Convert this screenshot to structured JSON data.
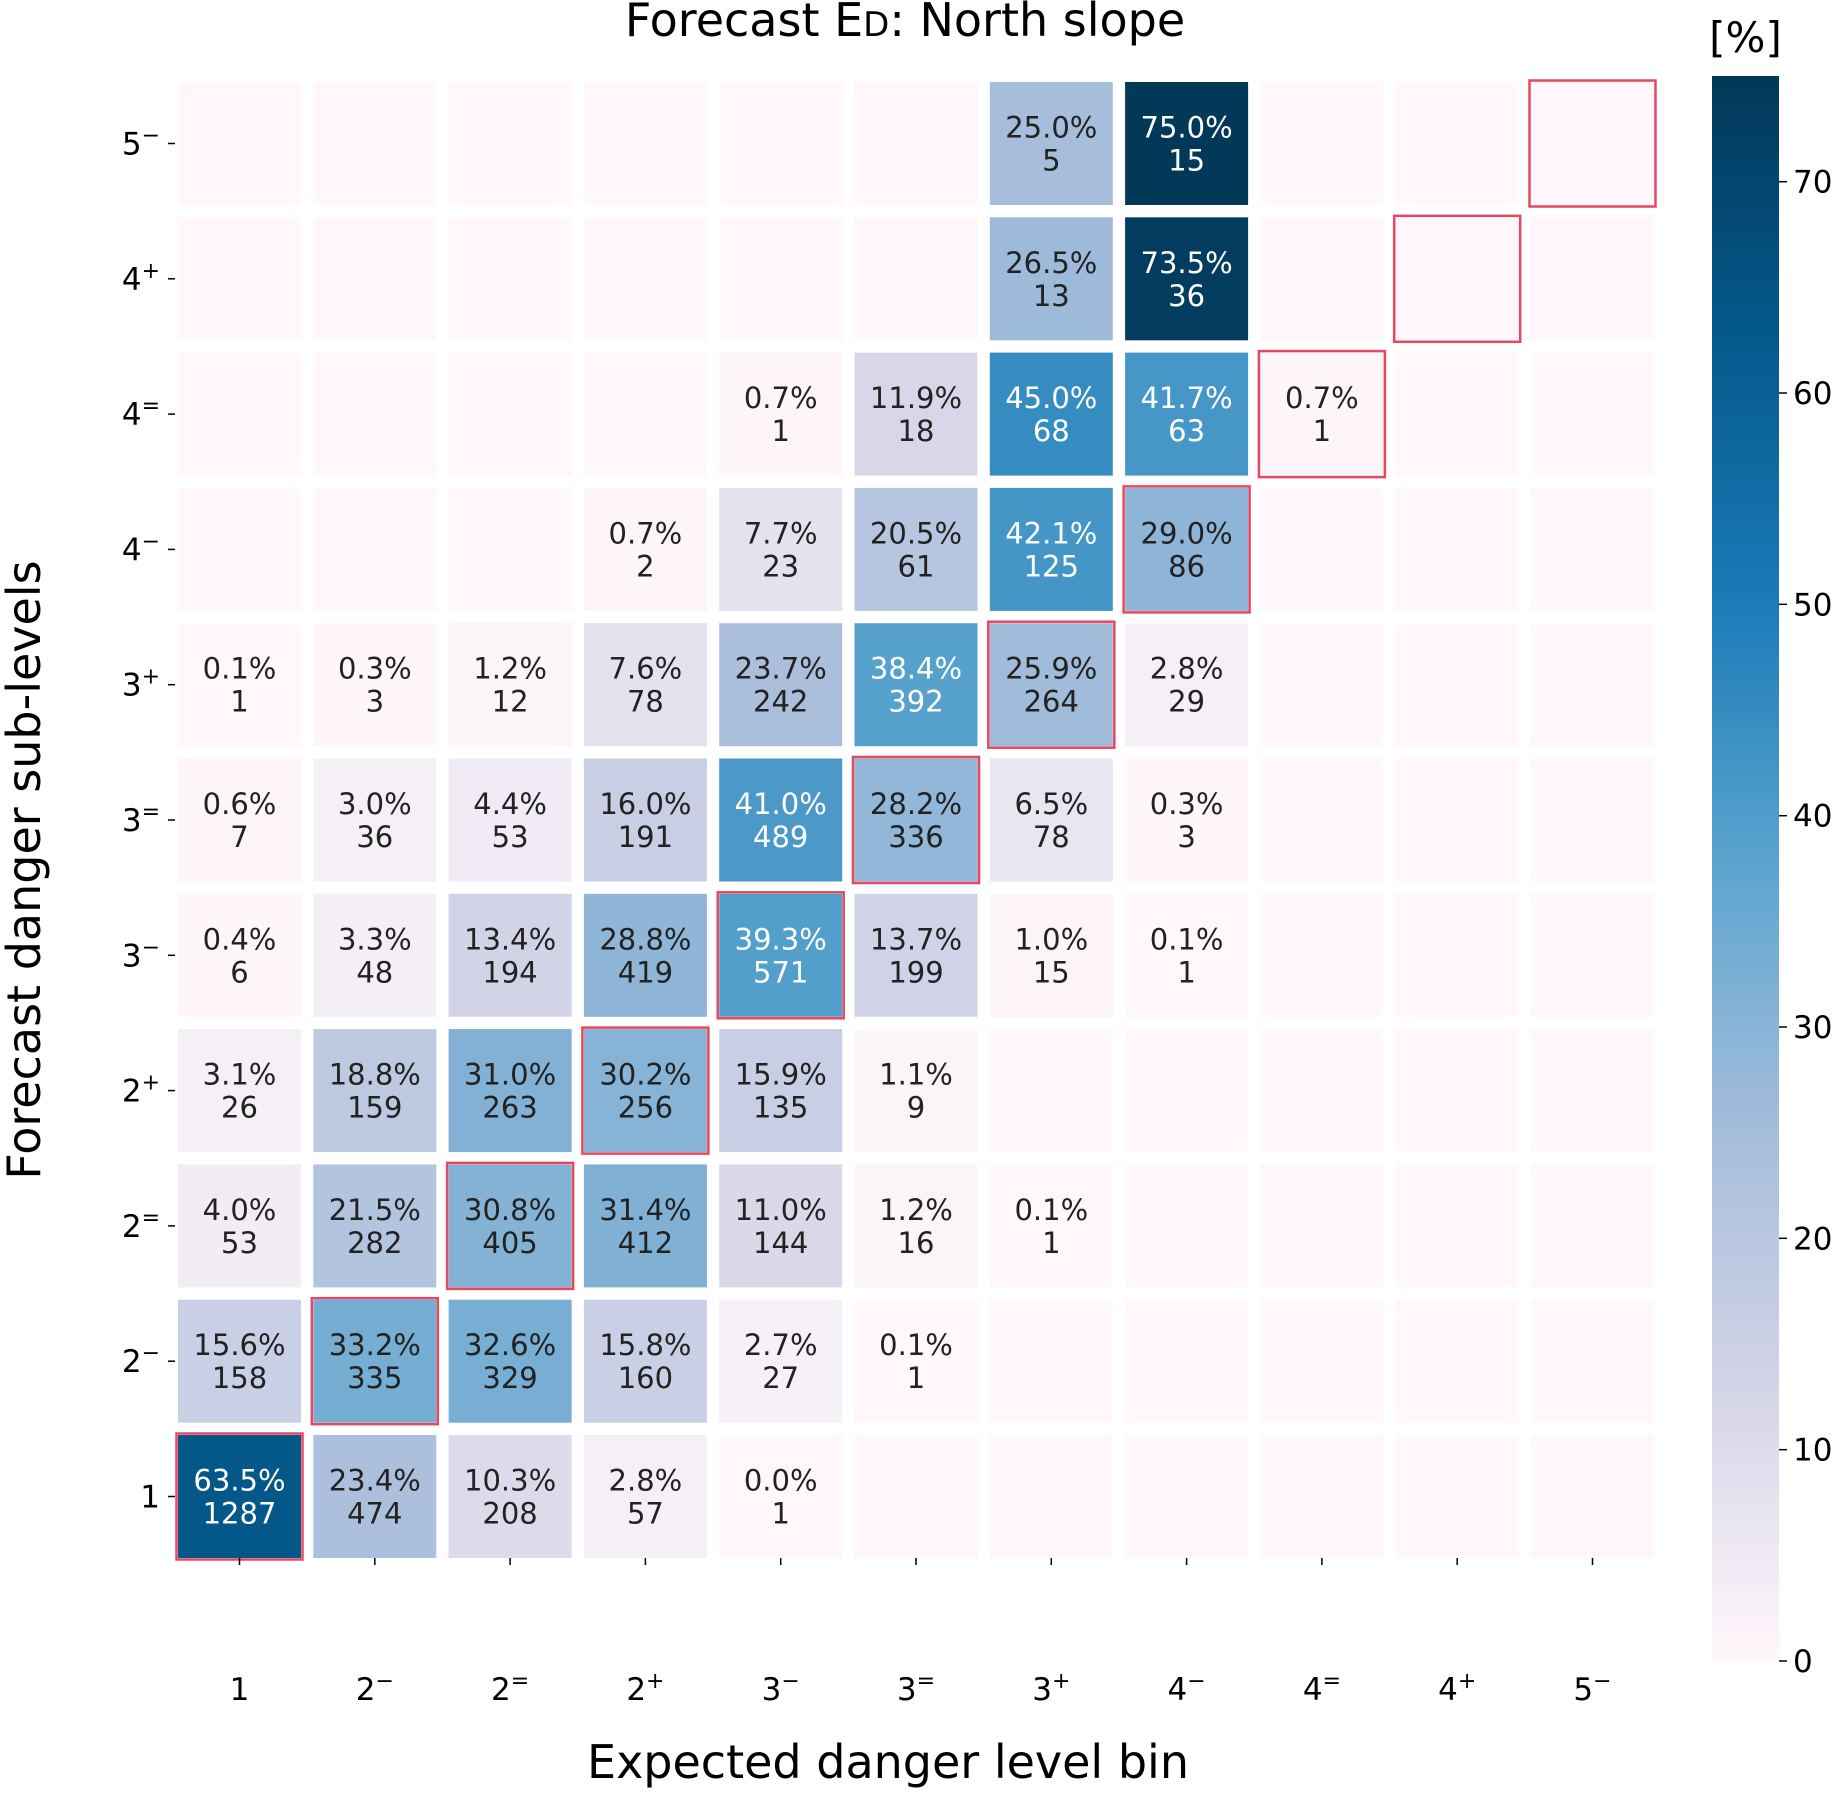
{
  "chart_data": {
    "type": "heatmap",
    "title": "Forecast ED: North slope",
    "title_parts": {
      "prefix": "Forecast E",
      "subscript": "D",
      "suffix": ": North slope"
    },
    "xlabel": "Expected danger level bin",
    "ylabel": "Forecast danger sub-levels",
    "x_categories": [
      {
        "base": "1",
        "mod": ""
      },
      {
        "base": "2",
        "mod": "−"
      },
      {
        "base": "2",
        "mod": "="
      },
      {
        "base": "2",
        "mod": "+"
      },
      {
        "base": "3",
        "mod": "−"
      },
      {
        "base": "3",
        "mod": "="
      },
      {
        "base": "3",
        "mod": "+"
      },
      {
        "base": "4",
        "mod": "−"
      },
      {
        "base": "4",
        "mod": "="
      },
      {
        "base": "4",
        "mod": "+"
      },
      {
        "base": "5",
        "mod": "−"
      }
    ],
    "y_categories_top_to_bottom": [
      {
        "base": "5",
        "mod": "−"
      },
      {
        "base": "4",
        "mod": "+"
      },
      {
        "base": "4",
        "mod": "="
      },
      {
        "base": "4",
        "mod": "−"
      },
      {
        "base": "3",
        "mod": "+"
      },
      {
        "base": "3",
        "mod": "="
      },
      {
        "base": "3",
        "mod": "−"
      },
      {
        "base": "2",
        "mod": "+"
      },
      {
        "base": "2",
        "mod": "="
      },
      {
        "base": "2",
        "mod": "−"
      },
      {
        "base": "1",
        "mod": ""
      }
    ],
    "percent": [
      [
        null,
        null,
        null,
        null,
        null,
        null,
        25.0,
        75.0,
        null,
        null,
        null
      ],
      [
        null,
        null,
        null,
        null,
        null,
        null,
        26.5,
        73.5,
        null,
        null,
        null
      ],
      [
        null,
        null,
        null,
        null,
        0.7,
        11.9,
        45.0,
        41.7,
        0.7,
        null,
        null
      ],
      [
        null,
        null,
        null,
        0.7,
        7.7,
        20.5,
        42.1,
        29.0,
        null,
        null,
        null
      ],
      [
        0.1,
        0.3,
        1.2,
        7.6,
        23.7,
        38.4,
        25.9,
        2.8,
        null,
        null,
        null
      ],
      [
        0.6,
        3.0,
        4.4,
        16.0,
        41.0,
        28.2,
        6.5,
        0.3,
        null,
        null,
        null
      ],
      [
        0.4,
        3.3,
        13.4,
        28.8,
        39.3,
        13.7,
        1.0,
        0.1,
        null,
        null,
        null
      ],
      [
        3.1,
        18.8,
        31.0,
        30.2,
        15.9,
        1.1,
        null,
        null,
        null,
        null,
        null
      ],
      [
        4.0,
        21.5,
        30.8,
        31.4,
        11.0,
        1.2,
        0.1,
        null,
        null,
        null,
        null
      ],
      [
        15.6,
        33.2,
        32.6,
        15.8,
        2.7,
        0.1,
        null,
        null,
        null,
        null,
        null
      ],
      [
        63.5,
        23.4,
        10.3,
        2.8,
        0.0,
        null,
        null,
        null,
        null,
        null,
        null
      ]
    ],
    "counts": [
      [
        null,
        null,
        null,
        null,
        null,
        null,
        5,
        15,
        null,
        null,
        null
      ],
      [
        null,
        null,
        null,
        null,
        null,
        null,
        13,
        36,
        null,
        null,
        null
      ],
      [
        null,
        null,
        null,
        null,
        1,
        18,
        68,
        63,
        1,
        null,
        null
      ],
      [
        null,
        null,
        null,
        2,
        23,
        61,
        125,
        86,
        null,
        null,
        null
      ],
      [
        1,
        3,
        12,
        78,
        242,
        392,
        264,
        29,
        null,
        null,
        null
      ],
      [
        7,
        36,
        53,
        191,
        489,
        336,
        78,
        3,
        null,
        null,
        null
      ],
      [
        6,
        48,
        194,
        419,
        571,
        199,
        15,
        1,
        null,
        null,
        null
      ],
      [
        26,
        159,
        263,
        256,
        135,
        9,
        null,
        null,
        null,
        null,
        null
      ],
      [
        53,
        282,
        405,
        412,
        144,
        16,
        1,
        null,
        null,
        null,
        null
      ],
      [
        158,
        335,
        329,
        160,
        27,
        1,
        null,
        null,
        null,
        null,
        null
      ],
      [
        1287,
        474,
        208,
        57,
        1,
        null,
        null,
        null,
        null,
        null,
        null
      ]
    ],
    "diagonal_highlight": true,
    "highlight_color": "#e8475f",
    "colorbar": {
      "label": "[%]",
      "range": [
        0,
        75
      ],
      "ticks": [
        0,
        10,
        20,
        30,
        40,
        50,
        60,
        70
      ],
      "colors": [
        "#fff7fb",
        "#d5d5e8",
        "#a6bddb",
        "#5ca5cf",
        "#1b7bb8",
        "#045a8d",
        "#023858"
      ]
    },
    "text_color_dark": "#222222",
    "text_color_light": "#ffffff"
  }
}
